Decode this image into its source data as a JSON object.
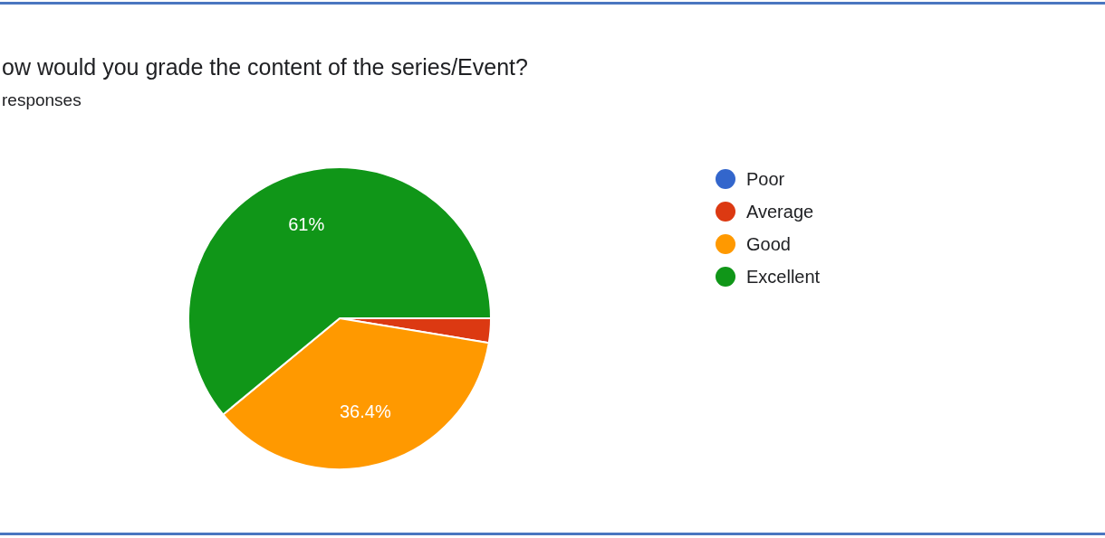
{
  "chart_data": {
    "type": "pie",
    "title": "ow would you grade the content of the series/Event?",
    "subtitle": "responses",
    "categories": [
      "Poor",
      "Average",
      "Good",
      "Excellent"
    ],
    "values": [
      0,
      2.6,
      36.4,
      61
    ],
    "colors": [
      "#3366cc",
      "#dc3912",
      "#ff9900",
      "#109618"
    ],
    "value_labels": [
      null,
      null,
      "36.4%",
      "61%"
    ],
    "legend": "right"
  }
}
